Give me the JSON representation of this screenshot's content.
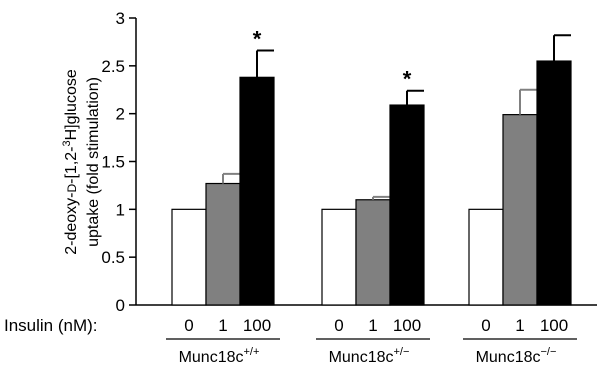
{
  "chart_data": {
    "type": "bar",
    "title": "",
    "ylabel": {
      "line1_pre": "2-deoxy-",
      "line1_d": "D",
      "line1_mid": "-[1,2-",
      "line1_sup": "3",
      "line1_post": "H]glucose",
      "line2": "uptake (fold stimulation)"
    },
    "xlabel": "",
    "ylim": [
      0,
      3
    ],
    "yticks": [
      "0",
      "0.5",
      "1",
      "1.5",
      "2",
      "2.5",
      "3"
    ],
    "row_label": "Insulin (nM):",
    "conditions": [
      "0",
      "1",
      "100"
    ],
    "condition_colors": [
      "#ffffff",
      "#808080",
      "#000000"
    ],
    "groups": [
      {
        "name_base": "Munc18c",
        "name_sup": "+/+",
        "values": [
          1.0,
          1.27,
          2.38
        ],
        "errors": [
          0,
          0.1,
          0.28
        ],
        "significant": [
          false,
          false,
          true
        ]
      },
      {
        "name_base": "Munc18c",
        "name_sup": "+/−",
        "values": [
          1.0,
          1.1,
          2.09
        ],
        "errors": [
          0,
          0.03,
          0.15
        ],
        "significant": [
          false,
          false,
          true
        ]
      },
      {
        "name_base": "Munc18c",
        "name_sup": "−/−",
        "values": [
          1.0,
          1.99,
          2.55
        ],
        "errors": [
          0,
          0.26,
          0.27
        ],
        "significant": [
          false,
          false,
          false
        ]
      }
    ],
    "significance_mark": "*",
    "grid": false,
    "legend": "none"
  }
}
